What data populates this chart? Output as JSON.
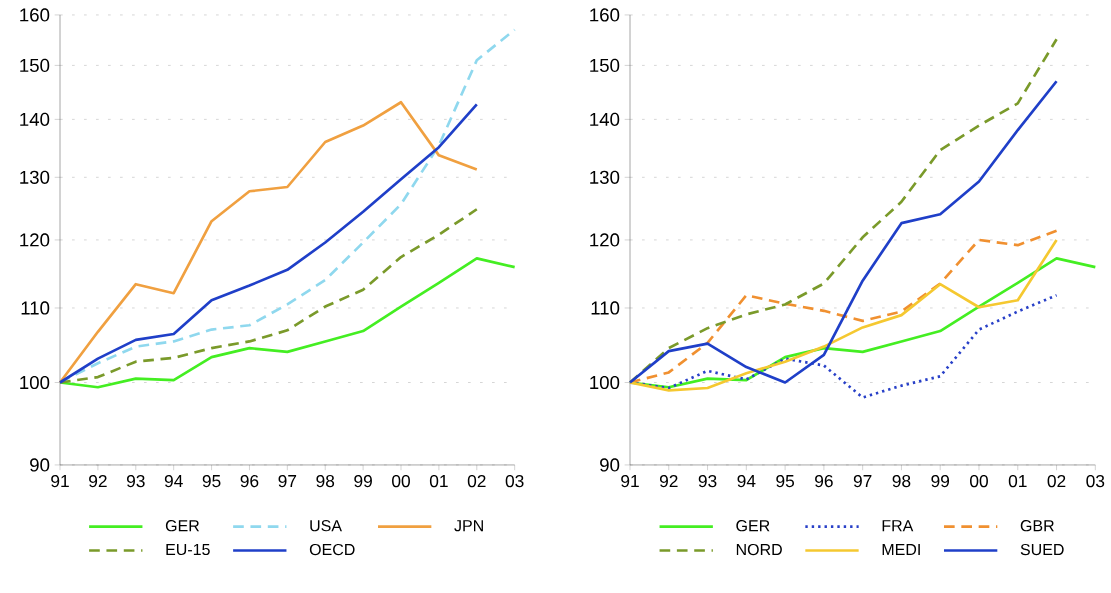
{
  "chart_data": [
    {
      "type": "line",
      "categories": [
        "91",
        "92",
        "93",
        "94",
        "95",
        "96",
        "97",
        "98",
        "99",
        "00",
        "01",
        "02",
        "03"
      ],
      "log": "y",
      "ylim": [
        90,
        160
      ],
      "yticks": [
        90,
        100,
        110,
        120,
        130,
        140,
        150,
        160
      ],
      "grid": "y",
      "legend": "bottom",
      "series": [
        {
          "name": "GER",
          "color": "#44ee22",
          "line_style": "solid",
          "values": [
            100,
            99.4,
            100.5,
            100.3,
            103.3,
            104.5,
            104,
            105.4,
            106.8,
            110.2,
            113.6,
            117.2,
            115.9
          ]
        },
        {
          "name": "USA",
          "color": "#8fd8ee",
          "line_style": "dashed",
          "values": [
            100,
            102.5,
            104.7,
            105.4,
            107,
            107.6,
            110.5,
            114,
            119.6,
            125.6,
            135.4,
            151,
            157
          ]
        },
        {
          "name": "JPN",
          "color": "#f0a040",
          "line_style": "solid",
          "values": [
            100,
            106.7,
            113.4,
            112.1,
            122.9,
            127.7,
            128.4,
            136,
            138.9,
            143.1,
            133.7,
            131.3,
            null
          ]
        },
        {
          "name": "EU-15",
          "color": "#7a9a2a",
          "line_style": "dashed",
          "values": [
            100,
            100.7,
            102.7,
            103.2,
            104.5,
            105.4,
            106.9,
            110.2,
            112.6,
            117.4,
            120.8,
            124.8,
            null
          ]
        },
        {
          "name": "OECD",
          "color": "#1f3fc8",
          "line_style": "solid",
          "values": [
            100,
            103.1,
            105.6,
            106.4,
            111.1,
            113.2,
            115.5,
            119.6,
            124.4,
            129.7,
            135.1,
            142.7,
            null
          ]
        }
      ]
    },
    {
      "type": "line",
      "categories": [
        "91",
        "92",
        "93",
        "94",
        "95",
        "96",
        "97",
        "98",
        "99",
        "00",
        "01",
        "02",
        "03"
      ],
      "log": "y",
      "ylim": [
        90,
        160
      ],
      "yticks": [
        90,
        100,
        110,
        120,
        130,
        140,
        150,
        160
      ],
      "grid": "y",
      "legend": "bottom",
      "series": [
        {
          "name": "GER",
          "color": "#44ee22",
          "line_style": "solid",
          "values": [
            100,
            99.4,
            100.5,
            100.3,
            103.3,
            104.5,
            104,
            105.4,
            106.8,
            110.2,
            113.6,
            117.2,
            115.9
          ]
        },
        {
          "name": "FRA",
          "color": "#2840c8",
          "line_style": "dotted",
          "values": [
            100,
            99.3,
            101.5,
            100.4,
            103.1,
            102.2,
            98.1,
            99.6,
            100.8,
            107,
            109.5,
            111.8,
            null
          ]
        },
        {
          "name": "GBR",
          "color": "#f09030",
          "line_style": "dashed",
          "values": [
            100,
            101.3,
            105.2,
            111.8,
            110.6,
            109.6,
            108.2,
            109.5,
            113.5,
            120,
            119.2,
            121.4,
            null
          ]
        },
        {
          "name": "NORD",
          "color": "#7a9a2a",
          "line_style": "dashed",
          "values": [
            100,
            104.5,
            107.2,
            109.1,
            110.5,
            113.5,
            120.4,
            126,
            134.6,
            138.9,
            142.9,
            155.1,
            null
          ]
        },
        {
          "name": "MEDI",
          "color": "#f5c830",
          "line_style": "solid",
          "values": [
            100,
            99,
            99.3,
            101.2,
            102.7,
            104.7,
            107.3,
            109,
            113.4,
            110.1,
            111.1,
            120,
            null
          ]
        },
        {
          "name": "SUED",
          "color": "#1f3fc8",
          "line_style": "solid",
          "values": [
            100,
            104.1,
            105.1,
            102,
            100,
            103.6,
            113.9,
            122.6,
            124,
            129.3,
            138.1,
            147,
            null
          ]
        }
      ]
    }
  ]
}
